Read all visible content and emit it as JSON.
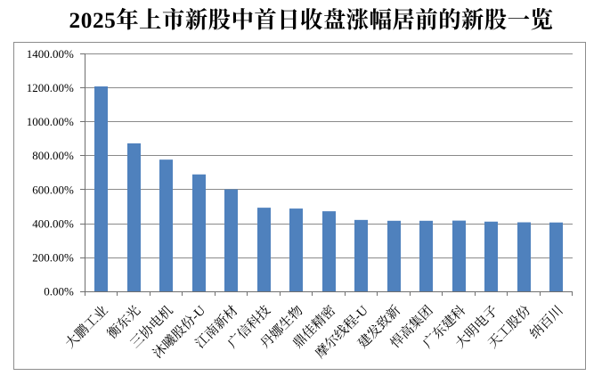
{
  "page": {
    "background_color": "#ffffff"
  },
  "chart_data": {
    "type": "bar",
    "title": "2025年上市新股中首日收盘涨幅居前的新股一览",
    "categories": [
      "大鹏工业",
      "衡东光",
      "三协电机",
      "沐曦股份-U",
      "江南新材",
      "广信科技",
      "丹娜生物",
      "鼎佳精密",
      "摩尔线程-U",
      "建发致新",
      "悍高集团",
      "广东建科",
      "大明电子",
      "天工股份",
      "纳百川"
    ],
    "values": [
      1208,
      873,
      777,
      690,
      602,
      494,
      489,
      473,
      422,
      417,
      417,
      418,
      412,
      408,
      407
    ],
    "unit": "%",
    "xlabel": "",
    "ylabel": "",
    "ylim": [
      0,
      1400
    ],
    "ytick_step": 200,
    "ytick_labels": [
      "0.00%",
      "200.00%",
      "400.00%",
      "600.00%",
      "800.00%",
      "1000.00%",
      "1200.00%",
      "1400.00%"
    ],
    "grid": "horizontal",
    "legend": "none",
    "bar_color": "#4f81bd",
    "gridline_color": "#8a8a8a",
    "axis_color": "#6f6f6f",
    "frame_border_color": "#8c8c8c",
    "text_color": "#000000"
  }
}
